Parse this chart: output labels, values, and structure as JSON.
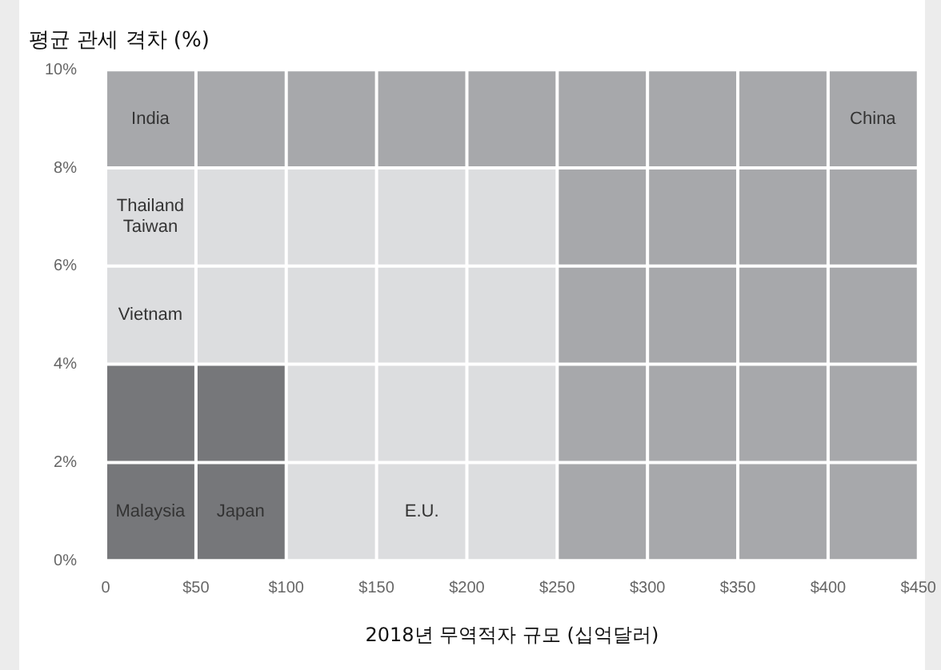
{
  "chart_data": {
    "type": "area",
    "ylabel": "평균 관세 격차 (%)",
    "xlabel": "2018년 무역적자 규모 (십억달러)",
    "xlim": [
      0,
      450
    ],
    "xticks": [
      {
        "value": 0,
        "label": "0"
      },
      {
        "value": 50,
        "label": "$50"
      },
      {
        "value": 100,
        "label": "$100"
      },
      {
        "value": 150,
        "label": "$150"
      },
      {
        "value": 200,
        "label": "$200"
      },
      {
        "value": 250,
        "label": "$250"
      },
      {
        "value": 300,
        "label": "$300"
      },
      {
        "value": 350,
        "label": "$350"
      },
      {
        "value": 400,
        "label": "$400"
      },
      {
        "value": 450,
        "label": "$450"
      }
    ],
    "ylim": [
      0,
      10
    ],
    "yticks": [
      {
        "value": 0,
        "label": "0%"
      },
      {
        "value": 2,
        "label": "2%"
      },
      {
        "value": 4,
        "label": "4%"
      },
      {
        "value": 6,
        "label": "6%"
      },
      {
        "value": 8,
        "label": "8%"
      },
      {
        "value": 10,
        "label": "10%"
      }
    ],
    "grid": true,
    "series": [
      {
        "color": "#76777a",
        "values": [
          4,
          4,
          0,
          0,
          0,
          0
        ]
      },
      {
        "color": "#dcdddf",
        "values": [
          4,
          4,
          8,
          8,
          0,
          0
        ]
      },
      {
        "color": "#a7a8ab",
        "values": [
          2,
          2,
          2,
          2,
          10,
          10
        ]
      }
    ],
    "x": [
      0,
      100,
      100,
      250,
      250,
      450
    ],
    "stacked": true,
    "annotations": [
      "India",
      "Thailand\nTaiwan",
      "Vietnam",
      "Malaysia",
      "Japan",
      "E.U.",
      "China"
    ]
  }
}
